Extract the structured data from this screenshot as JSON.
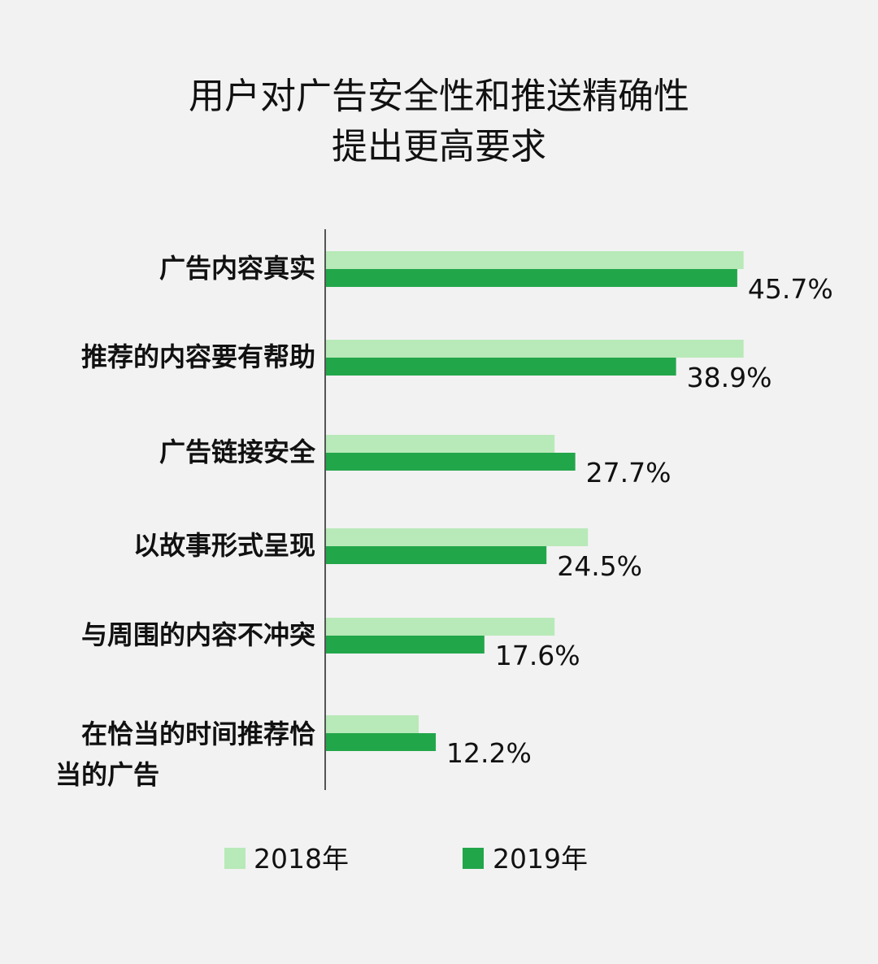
{
  "chart_data": {
    "type": "bar",
    "orientation": "horizontal",
    "title": [
      "用户对广告安全性和推送精确性",
      "提出更高要求"
    ],
    "categories": [
      "广告内容真实",
      "推荐的内容要有帮助",
      "广告链接安全",
      "以故事形式呈现",
      "与周围的内容不冲突",
      "在恰当的时间推荐恰当的广告"
    ],
    "category_lines": [
      [
        "广告内容真实"
      ],
      [
        "推荐的内容要有帮助"
      ],
      [
        "广告链接安全"
      ],
      [
        "以故事形式呈现"
      ],
      [
        "与周围的内容不冲突"
      ],
      [
        "在恰当的时间推荐恰",
        "当的广告"
      ]
    ],
    "series": [
      {
        "name": "2018年",
        "color": "#b8e9b8",
        "values": [
          46.4,
          46.4,
          25.4,
          29.1,
          25.4,
          10.3
        ]
      },
      {
        "name": "2019年",
        "color": "#22a64a",
        "values": [
          45.7,
          38.9,
          27.7,
          24.5,
          17.6,
          12.2
        ]
      }
    ],
    "data_labels": [
      "45.7%",
      "38.9%",
      "27.7%",
      "24.5%",
      "17.6%",
      "12.2%"
    ],
    "xlim": [
      0,
      50
    ],
    "grid": false,
    "legend_position": "bottom"
  }
}
